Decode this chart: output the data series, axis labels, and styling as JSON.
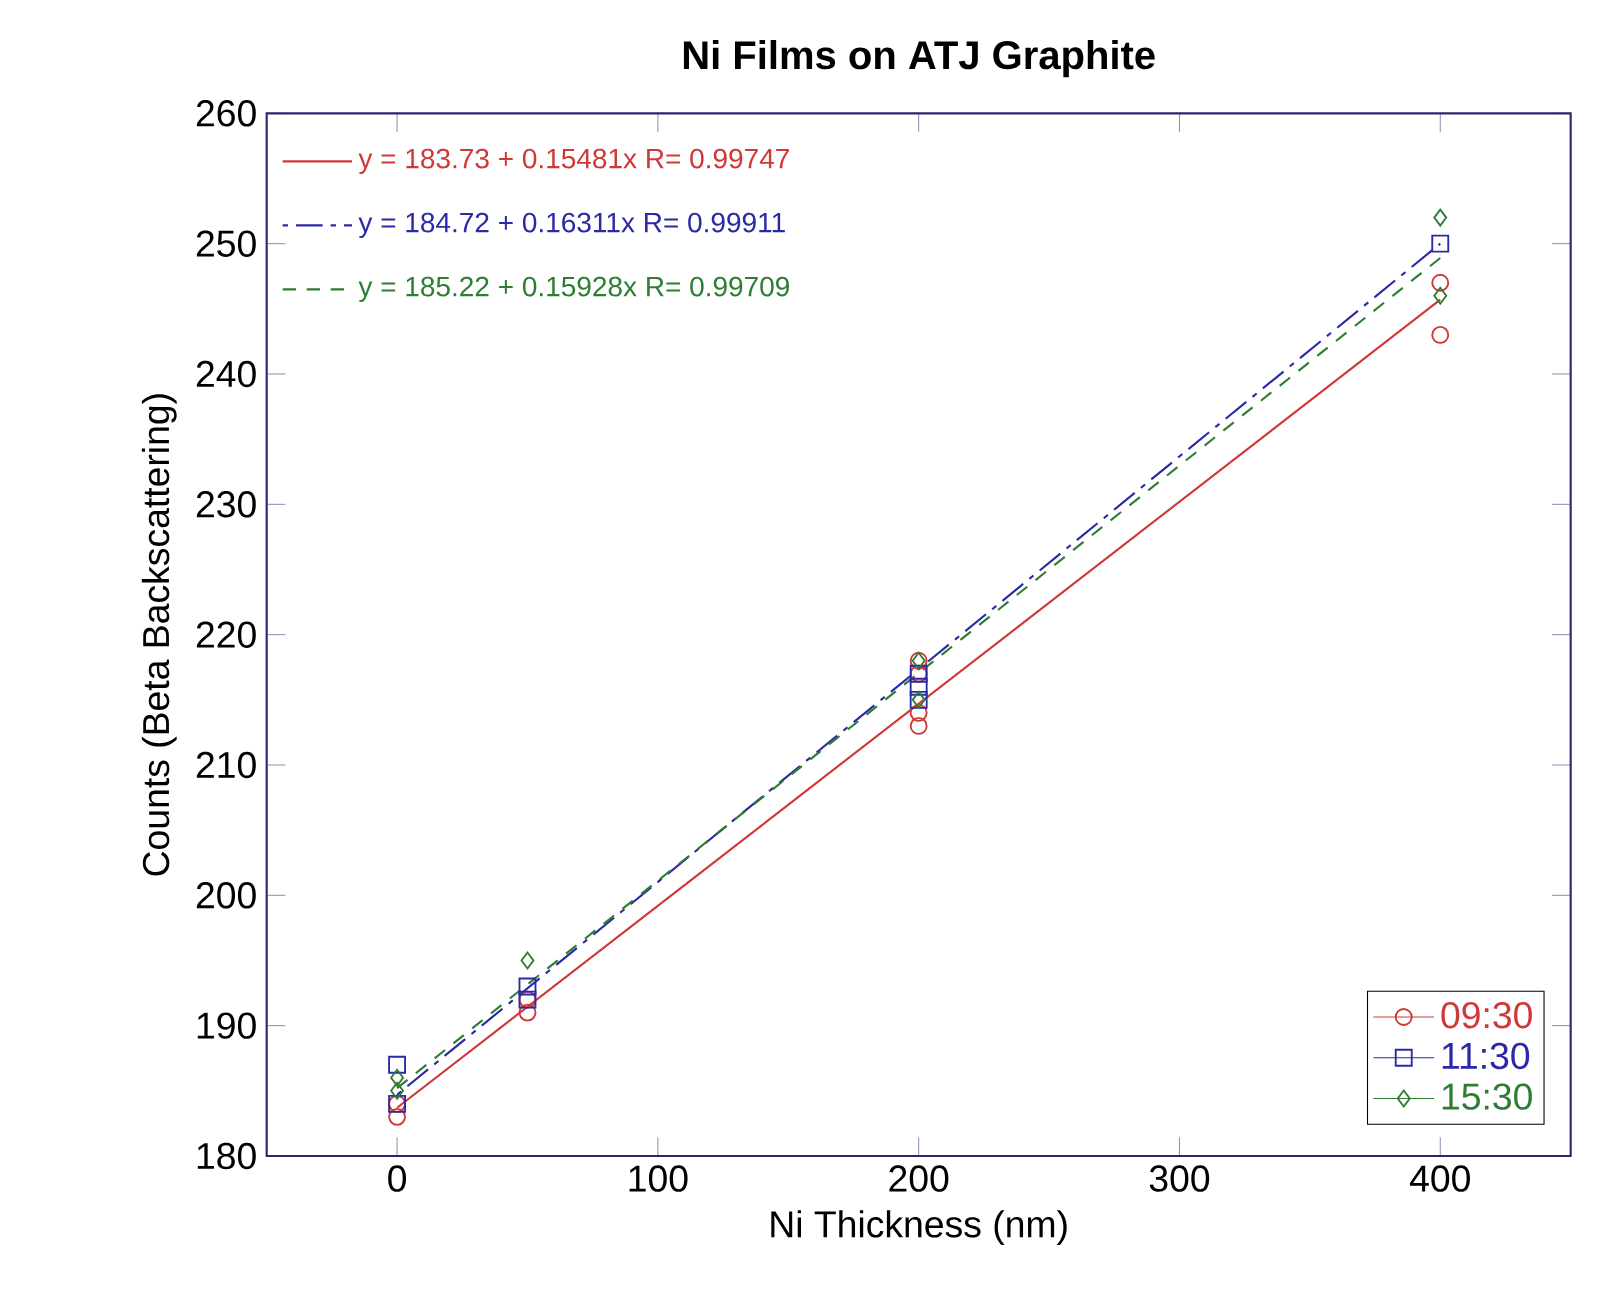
{
  "chart_data": {
    "type": "scatter",
    "title": "Ni Films on ATJ Graphite",
    "xlabel": "Ni Thickness (nm)",
    "ylabel": "Counts (Beta Backscattering)",
    "xlim": [
      -50,
      450
    ],
    "xticks": [
      0,
      100,
      200,
      300,
      400
    ],
    "ylim": [
      180,
      260
    ],
    "yticks": [
      180,
      190,
      200,
      210,
      220,
      230,
      240,
      250,
      260
    ],
    "grid": false,
    "legend": "bottom right",
    "annotations": [
      "y = 183.73 + 0.15481x   R= 0.99747",
      "y = 184.72 + 0.16311x   R= 0.99911",
      "y = 185.22 + 0.15928x   R= 0.99709"
    ],
    "series": [
      {
        "name": "09:30",
        "color": "#d03838",
        "marker": "circle",
        "x": [
          0,
          0,
          50,
          50,
          200,
          200,
          200,
          200,
          400,
          400
        ],
        "values": [
          183,
          184,
          191,
          192,
          213,
          214,
          217,
          218,
          243,
          247
        ]
      },
      {
        "name": "11:30",
        "color": "#2a2aa8",
        "marker": "square",
        "x": [
          0,
          0,
          50,
          50,
          200,
          200,
          200,
          400
        ],
        "values": [
          184,
          187,
          192,
          193,
          215,
          216,
          217,
          250
        ]
      },
      {
        "name": "15:30",
        "color": "#2e7d32",
        "marker": "diamond",
        "x": [
          0,
          0,
          50,
          200,
          200,
          400,
          400
        ],
        "values": [
          185,
          186,
          195,
          215,
          218,
          246,
          252
        ]
      },
      {
        "type": "line",
        "color": "#d03838",
        "line_style": "solid",
        "x": [
          0,
          400
        ],
        "values": [
          183.7,
          245.7
        ]
      },
      {
        "type": "line",
        "color": "#2a2aa8",
        "line_style": "dashdot",
        "x": [
          0,
          400
        ],
        "values": [
          184.7,
          250.0
        ]
      },
      {
        "type": "line",
        "color": "#2e7d32",
        "line_style": "dashed",
        "x": [
          0,
          400
        ],
        "values": [
          185.2,
          248.9
        ]
      }
    ]
  }
}
